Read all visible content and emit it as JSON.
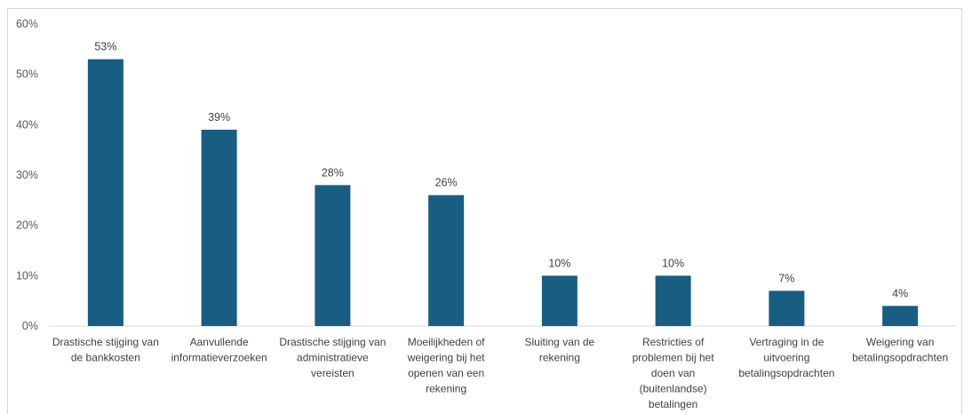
{
  "chart_data": {
    "type": "bar",
    "categories": [
      [
        "Drastische stijging van",
        "de bankkosten"
      ],
      [
        "Aanvullende",
        "informatieverzoeken"
      ],
      [
        "Drastische stijging van",
        "administratieve",
        "vereisten"
      ],
      [
        "Moeilijkheden of",
        "weigering bij het",
        "openen van een",
        "rekening"
      ],
      [
        "Sluiting van de",
        "rekening"
      ],
      [
        "Restricties of",
        "problemen bij het",
        "doen van",
        "(buitenlandse)",
        "betalingen"
      ],
      [
        "Vertraging in de",
        "uitvoering",
        "betalingsopdrachten"
      ],
      [
        "Weigering van",
        "betalingsopdrachten"
      ]
    ],
    "values": [
      53,
      39,
      28,
      26,
      10,
      10,
      7,
      4
    ],
    "data_labels": [
      "53%",
      "39%",
      "28%",
      "26%",
      "10%",
      "10%",
      "7%",
      "4%"
    ],
    "y_ticks": [
      "0%",
      "10%",
      "20%",
      "30%",
      "40%",
      "50%",
      "60%"
    ],
    "ylim": [
      0,
      60
    ],
    "grid": false,
    "title": "",
    "xlabel": "",
    "ylabel": "",
    "bar_color": "#175e82"
  }
}
